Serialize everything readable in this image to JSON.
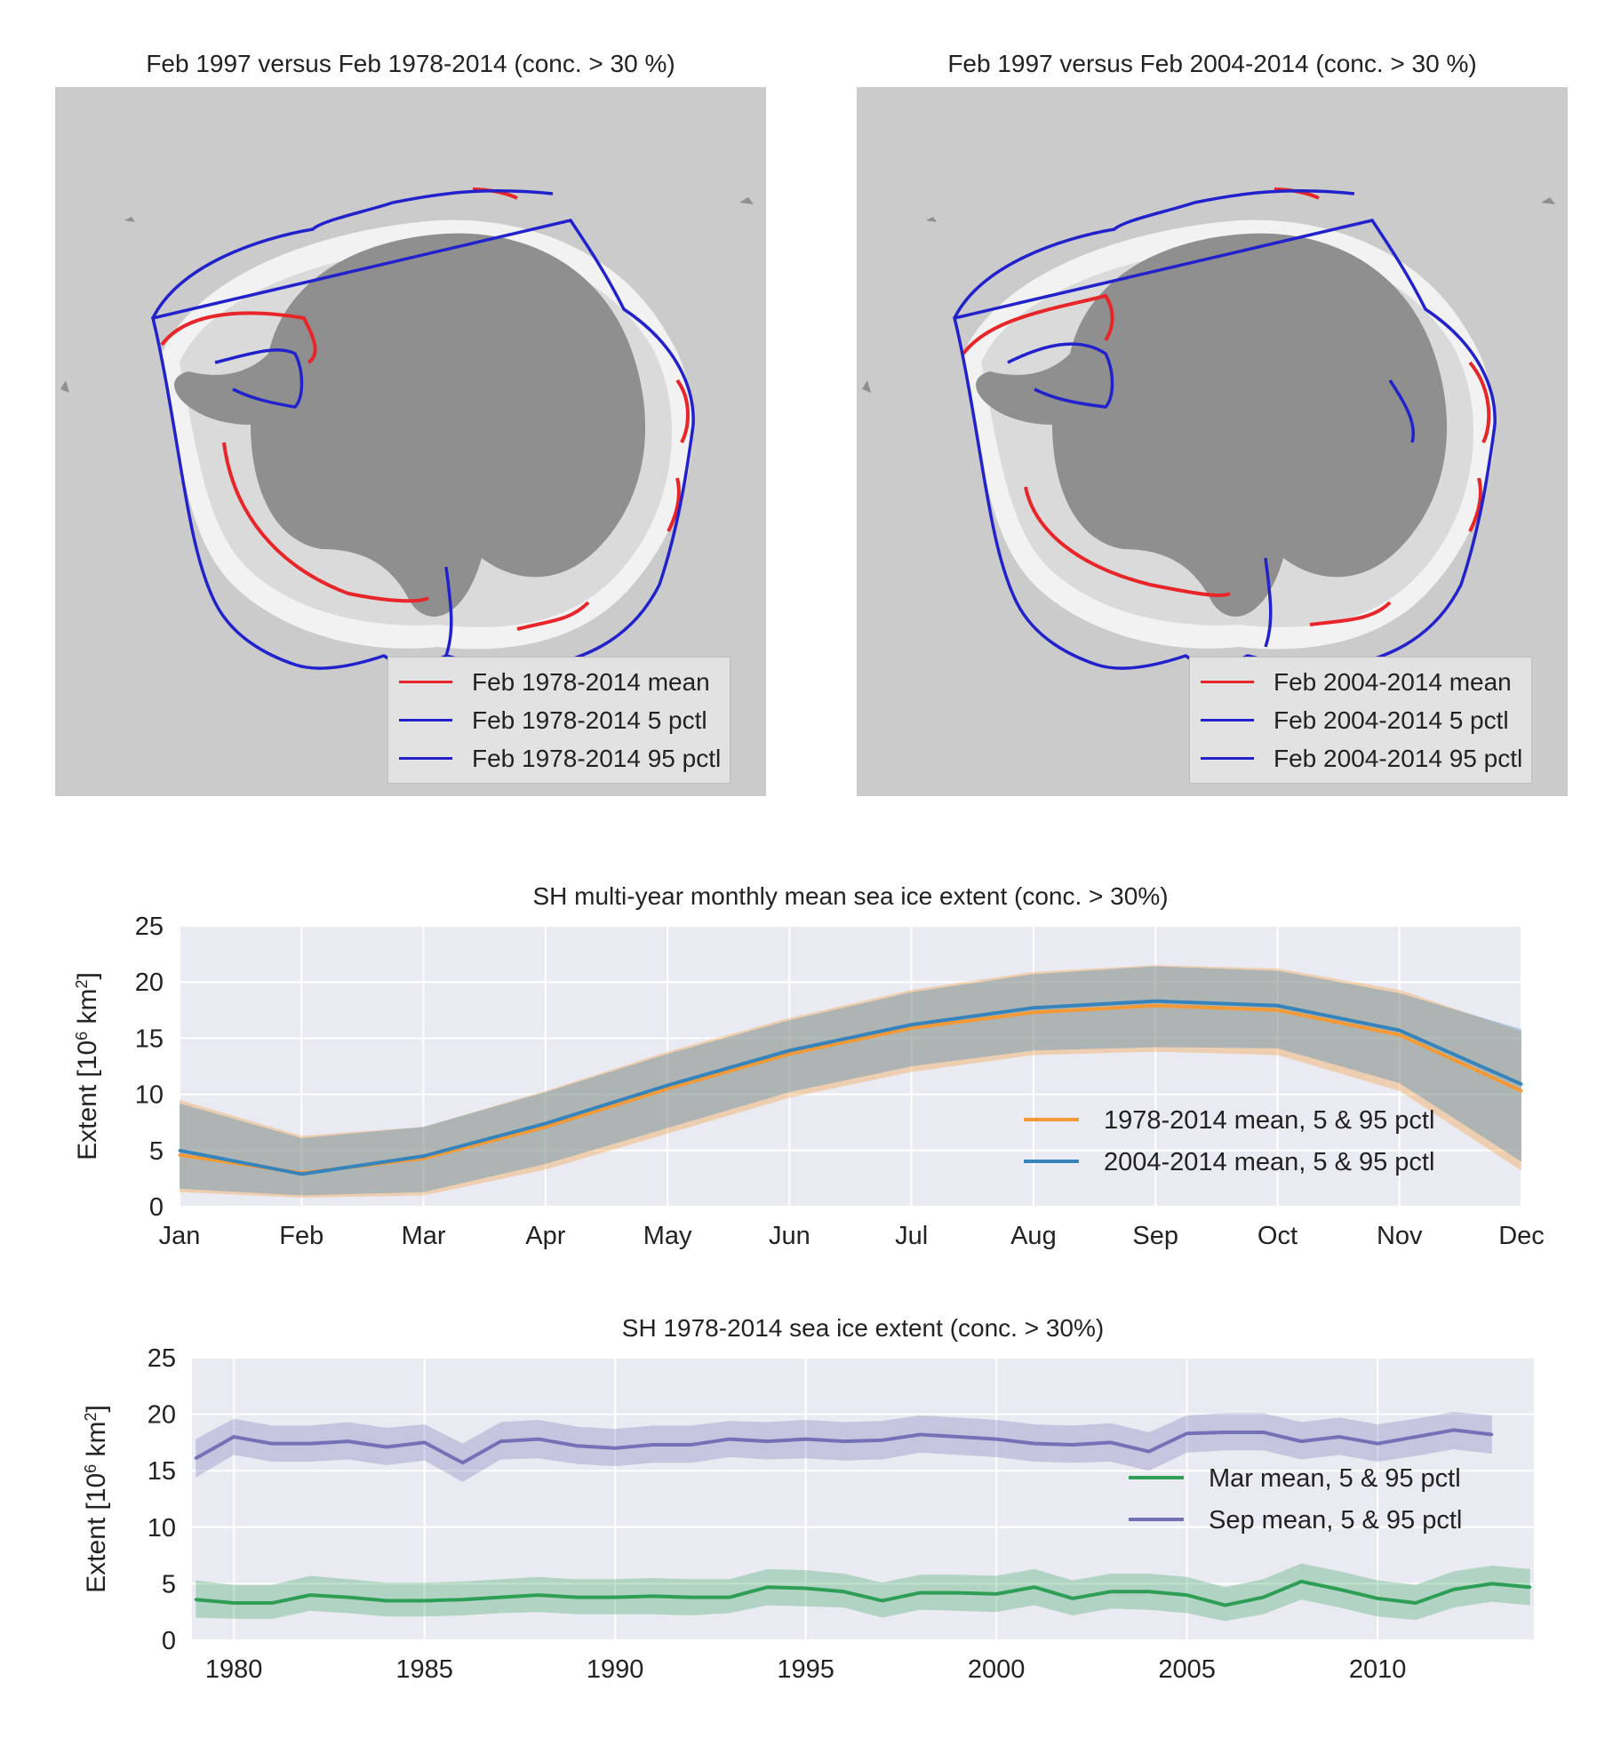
{
  "maps": [
    {
      "title": "Feb 1997 versus Feb 1978-2014 (conc. > 30 %)",
      "legend": [
        {
          "label": "Feb 1978-2014 mean",
          "color": "#e8262a"
        },
        {
          "label": "Feb 1978-2014 5 pctl",
          "color": "#2222cc"
        },
        {
          "label": "Feb 1978-2014 95 pctl",
          "color": "#2222cc"
        }
      ]
    },
    {
      "title": "Feb 1997 versus Feb 2004-2014 (conc. > 30 %)",
      "legend": [
        {
          "label": "Feb 2004-2014 mean",
          "color": "#e8262a"
        },
        {
          "label": "Feb 2004-2014 5 pctl",
          "color": "#2222cc"
        },
        {
          "label": "Feb 2004-2014 95 pctl",
          "color": "#2222cc"
        }
      ]
    }
  ],
  "chart_data": [
    {
      "type": "line",
      "title": "SH multi-year monthly mean sea ice extent (conc. > 30%)",
      "ylabel": "Extent [10^6 km^2]",
      "ylim": [
        0,
        25
      ],
      "yticks": [
        0,
        5,
        10,
        15,
        20,
        25
      ],
      "categories": [
        "Jan",
        "Feb",
        "Mar",
        "Apr",
        "May",
        "Jun",
        "Jul",
        "Aug",
        "Sep",
        "Oct",
        "Nov",
        "Dec"
      ],
      "grid": true,
      "legend_position": "lower-right",
      "series": [
        {
          "name": "1978-2014 mean, 5 & 95 pctl",
          "color": "#f39a36",
          "values": [
            4.6,
            3.0,
            4.3,
            7.1,
            10.5,
            13.6,
            15.9,
            17.3,
            17.9,
            17.5,
            15.3,
            10.3
          ],
          "p5": [
            1.3,
            0.8,
            1.0,
            3.3,
            6.5,
            9.7,
            12.0,
            13.5,
            13.8,
            13.5,
            10.3,
            3.2
          ],
          "p95": [
            9.5,
            6.3,
            7.1,
            10.3,
            13.8,
            16.8,
            19.3,
            20.9,
            21.5,
            21.2,
            19.3,
            15.6
          ]
        },
        {
          "name": "2004-2014 mean, 5 & 95 pctl",
          "color": "#3783bb",
          "values": [
            5.0,
            2.9,
            4.5,
            7.4,
            10.8,
            13.9,
            16.2,
            17.7,
            18.3,
            17.9,
            15.7,
            10.9
          ],
          "p5": [
            1.6,
            1.0,
            1.3,
            3.8,
            7.0,
            10.2,
            12.5,
            13.9,
            14.2,
            14.1,
            11.0,
            4.0
          ],
          "p95": [
            9.2,
            6.1,
            7.1,
            10.2,
            13.6,
            16.6,
            19.1,
            20.7,
            21.4,
            21.0,
            19.0,
            15.8
          ]
        }
      ]
    },
    {
      "type": "line",
      "title": "SH 1978-2014 sea ice extent (conc. > 30%)",
      "ylabel": "Extent [10^6 km^2]",
      "ylim": [
        0,
        25
      ],
      "xlim": [
        1978.9,
        2014.1
      ],
      "yticks": [
        0,
        5,
        10,
        15,
        20,
        25
      ],
      "xticks": [
        1980,
        1985,
        1990,
        1995,
        2000,
        2005,
        2010
      ],
      "grid": true,
      "legend_position": "center-right",
      "series": [
        {
          "name": "Mar mean, 5 & 95 pctl",
          "color": "#2e9e57",
          "x": [
            1979,
            1980,
            1981,
            1982,
            1983,
            1984,
            1985,
            1986,
            1987,
            1988,
            1989,
            1990,
            1991,
            1992,
            1993,
            1994,
            1995,
            1996,
            1997,
            1998,
            1999,
            2000,
            2001,
            2002,
            2003,
            2004,
            2005,
            2006,
            2007,
            2008,
            2009,
            2010,
            2011,
            2012,
            2013,
            2014
          ],
          "values": [
            3.6,
            3.3,
            3.3,
            4.0,
            3.8,
            3.5,
            3.5,
            3.6,
            3.8,
            4.0,
            3.8,
            3.8,
            3.9,
            3.8,
            3.8,
            4.7,
            4.6,
            4.3,
            3.5,
            4.2,
            4.2,
            4.1,
            4.7,
            3.7,
            4.3,
            4.3,
            4.0,
            3.1,
            3.8,
            5.2,
            4.5,
            3.7,
            3.3,
            4.5,
            5.0,
            4.7
          ],
          "p5": [
            2.0,
            1.9,
            1.9,
            2.6,
            2.4,
            2.1,
            2.1,
            2.2,
            2.4,
            2.5,
            2.3,
            2.3,
            2.3,
            2.2,
            2.4,
            3.1,
            3.0,
            2.9,
            2.0,
            2.7,
            2.6,
            2.5,
            3.1,
            2.2,
            2.8,
            2.7,
            2.4,
            1.7,
            2.3,
            3.6,
            2.9,
            2.1,
            1.8,
            2.9,
            3.4,
            3.1
          ],
          "p95": [
            5.3,
            4.9,
            4.9,
            5.7,
            5.4,
            5.1,
            5.1,
            5.2,
            5.4,
            5.6,
            5.4,
            5.4,
            5.5,
            5.4,
            5.4,
            6.3,
            6.2,
            5.9,
            5.1,
            5.8,
            5.8,
            5.7,
            6.3,
            5.3,
            5.9,
            5.9,
            5.6,
            4.7,
            5.4,
            6.8,
            6.1,
            5.3,
            4.9,
            6.1,
            6.6,
            6.3
          ]
        },
        {
          "name": "Sep mean, 5 & 95 pctl",
          "color": "#7571b7",
          "x": [
            1979,
            1980,
            1981,
            1982,
            1983,
            1984,
            1985,
            1986,
            1987,
            1988,
            1989,
            1990,
            1991,
            1992,
            1993,
            1994,
            1995,
            1996,
            1997,
            1998,
            1999,
            2000,
            2001,
            2002,
            2003,
            2004,
            2005,
            2006,
            2007,
            2008,
            2009,
            2010,
            2011,
            2012,
            2013
          ],
          "values": [
            16.1,
            18.0,
            17.4,
            17.4,
            17.6,
            17.1,
            17.5,
            15.7,
            17.6,
            17.8,
            17.2,
            17.0,
            17.3,
            17.3,
            17.8,
            17.6,
            17.8,
            17.6,
            17.7,
            18.2,
            18.0,
            17.8,
            17.4,
            17.3,
            17.5,
            16.7,
            18.3,
            18.4,
            18.4,
            17.6,
            18.0,
            17.4,
            18.0,
            18.6,
            18.2
          ],
          "p5": [
            14.4,
            16.4,
            15.8,
            15.8,
            16.0,
            15.5,
            15.9,
            14.0,
            16.0,
            16.1,
            15.6,
            15.4,
            15.7,
            15.7,
            16.2,
            16.0,
            16.1,
            15.9,
            16.0,
            16.6,
            16.4,
            16.2,
            15.8,
            15.7,
            15.8,
            15.0,
            16.6,
            16.8,
            16.8,
            16.0,
            16.4,
            15.8,
            16.3,
            16.9,
            16.5
          ],
          "p95": [
            17.8,
            19.6,
            19.0,
            19.0,
            19.3,
            18.8,
            19.1,
            17.4,
            19.3,
            19.5,
            18.9,
            18.7,
            19.0,
            19.0,
            19.4,
            19.3,
            19.5,
            19.3,
            19.4,
            19.9,
            19.7,
            19.5,
            19.1,
            19.0,
            19.2,
            18.4,
            19.9,
            20.1,
            20.1,
            19.3,
            19.7,
            19.1,
            19.6,
            20.2,
            19.9
          ]
        }
      ]
    }
  ]
}
